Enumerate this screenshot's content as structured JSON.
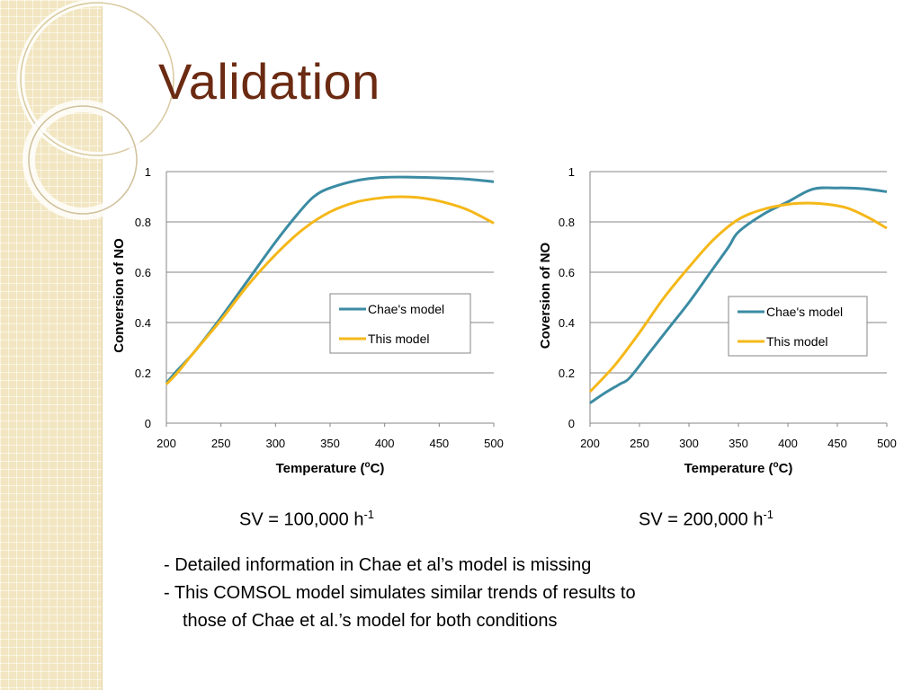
{
  "slide": {
    "title": "Validation",
    "captions": [
      {
        "text": "SV = 100,000 h",
        "sup": "-1"
      },
      {
        "text": "SV = 200,000 h",
        "sup": "-1"
      }
    ],
    "bullets": [
      "- Detailed information in Chae et al’s model is missing",
      "- This COMSOL model simulates similar trends of results to",
      "those of Chae et al.’s model for both conditions"
    ]
  },
  "colors": {
    "title": "#6b2a12",
    "chae": "#3b8ba3",
    "this": "#f5b819",
    "grid": "#868686"
  },
  "chart_data": [
    {
      "type": "line",
      "xlabel": "Temperature (",
      "xlabel_sup": "o",
      "xlabel_end": "C)",
      "ylabel": "Conversion of NO",
      "xlim": [
        200,
        500
      ],
      "ylim": [
        0,
        1
      ],
      "x_ticks": [
        "200",
        "250",
        "300",
        "350",
        "400",
        "450",
        "500"
      ],
      "y_ticks": [
        "0",
        "0.2",
        "0.4",
        "0.6",
        "0.8",
        "1"
      ],
      "grid": true,
      "legend_position": "center-right",
      "series": [
        {
          "name": "Chae's model",
          "color": "#3b8ba3",
          "x": [
            200,
            210,
            225,
            250,
            275,
            300,
            320,
            335,
            350,
            375,
            400,
            425,
            450,
            475,
            500
          ],
          "y": [
            0.16,
            0.21,
            0.28,
            0.42,
            0.57,
            0.72,
            0.83,
            0.9,
            0.935,
            0.965,
            0.977,
            0.978,
            0.975,
            0.97,
            0.96
          ]
        },
        {
          "name": "This model",
          "color": "#f5b819",
          "x": [
            200,
            210,
            225,
            250,
            275,
            300,
            325,
            350,
            375,
            400,
            415,
            430,
            450,
            475,
            500
          ],
          "y": [
            0.155,
            0.2,
            0.28,
            0.41,
            0.55,
            0.67,
            0.77,
            0.84,
            0.88,
            0.897,
            0.9,
            0.897,
            0.883,
            0.85,
            0.795
          ]
        }
      ]
    },
    {
      "type": "line",
      "xlabel": "Temperature (",
      "xlabel_sup": "o",
      "xlabel_end": "C)",
      "ylabel": "Coversion of NO",
      "xlim": [
        200,
        500
      ],
      "ylim": [
        0,
        1
      ],
      "x_ticks": [
        "200",
        "250",
        "300",
        "350",
        "400",
        "450",
        "500"
      ],
      "y_ticks": [
        "0",
        "0.2",
        "0.4",
        "0.6",
        "0.8",
        "1"
      ],
      "grid": true,
      "legend_position": "center-right",
      "series": [
        {
          "name": "Chae's model",
          "color": "#3b8ba3",
          "x": [
            200,
            215,
            230,
            240,
            260,
            280,
            300,
            320,
            340,
            350,
            375,
            400,
            425,
            450,
            475,
            500
          ],
          "y": [
            0.08,
            0.12,
            0.155,
            0.18,
            0.28,
            0.38,
            0.48,
            0.59,
            0.7,
            0.76,
            0.83,
            0.88,
            0.93,
            0.935,
            0.932,
            0.92
          ]
        },
        {
          "name": "This model",
          "color": "#f5b819",
          "x": [
            200,
            225,
            250,
            275,
            300,
            325,
            350,
            375,
            400,
            420,
            440,
            460,
            480,
            500
          ],
          "y": [
            0.125,
            0.23,
            0.36,
            0.5,
            0.62,
            0.73,
            0.81,
            0.85,
            0.87,
            0.875,
            0.87,
            0.855,
            0.82,
            0.775
          ]
        }
      ]
    }
  ]
}
